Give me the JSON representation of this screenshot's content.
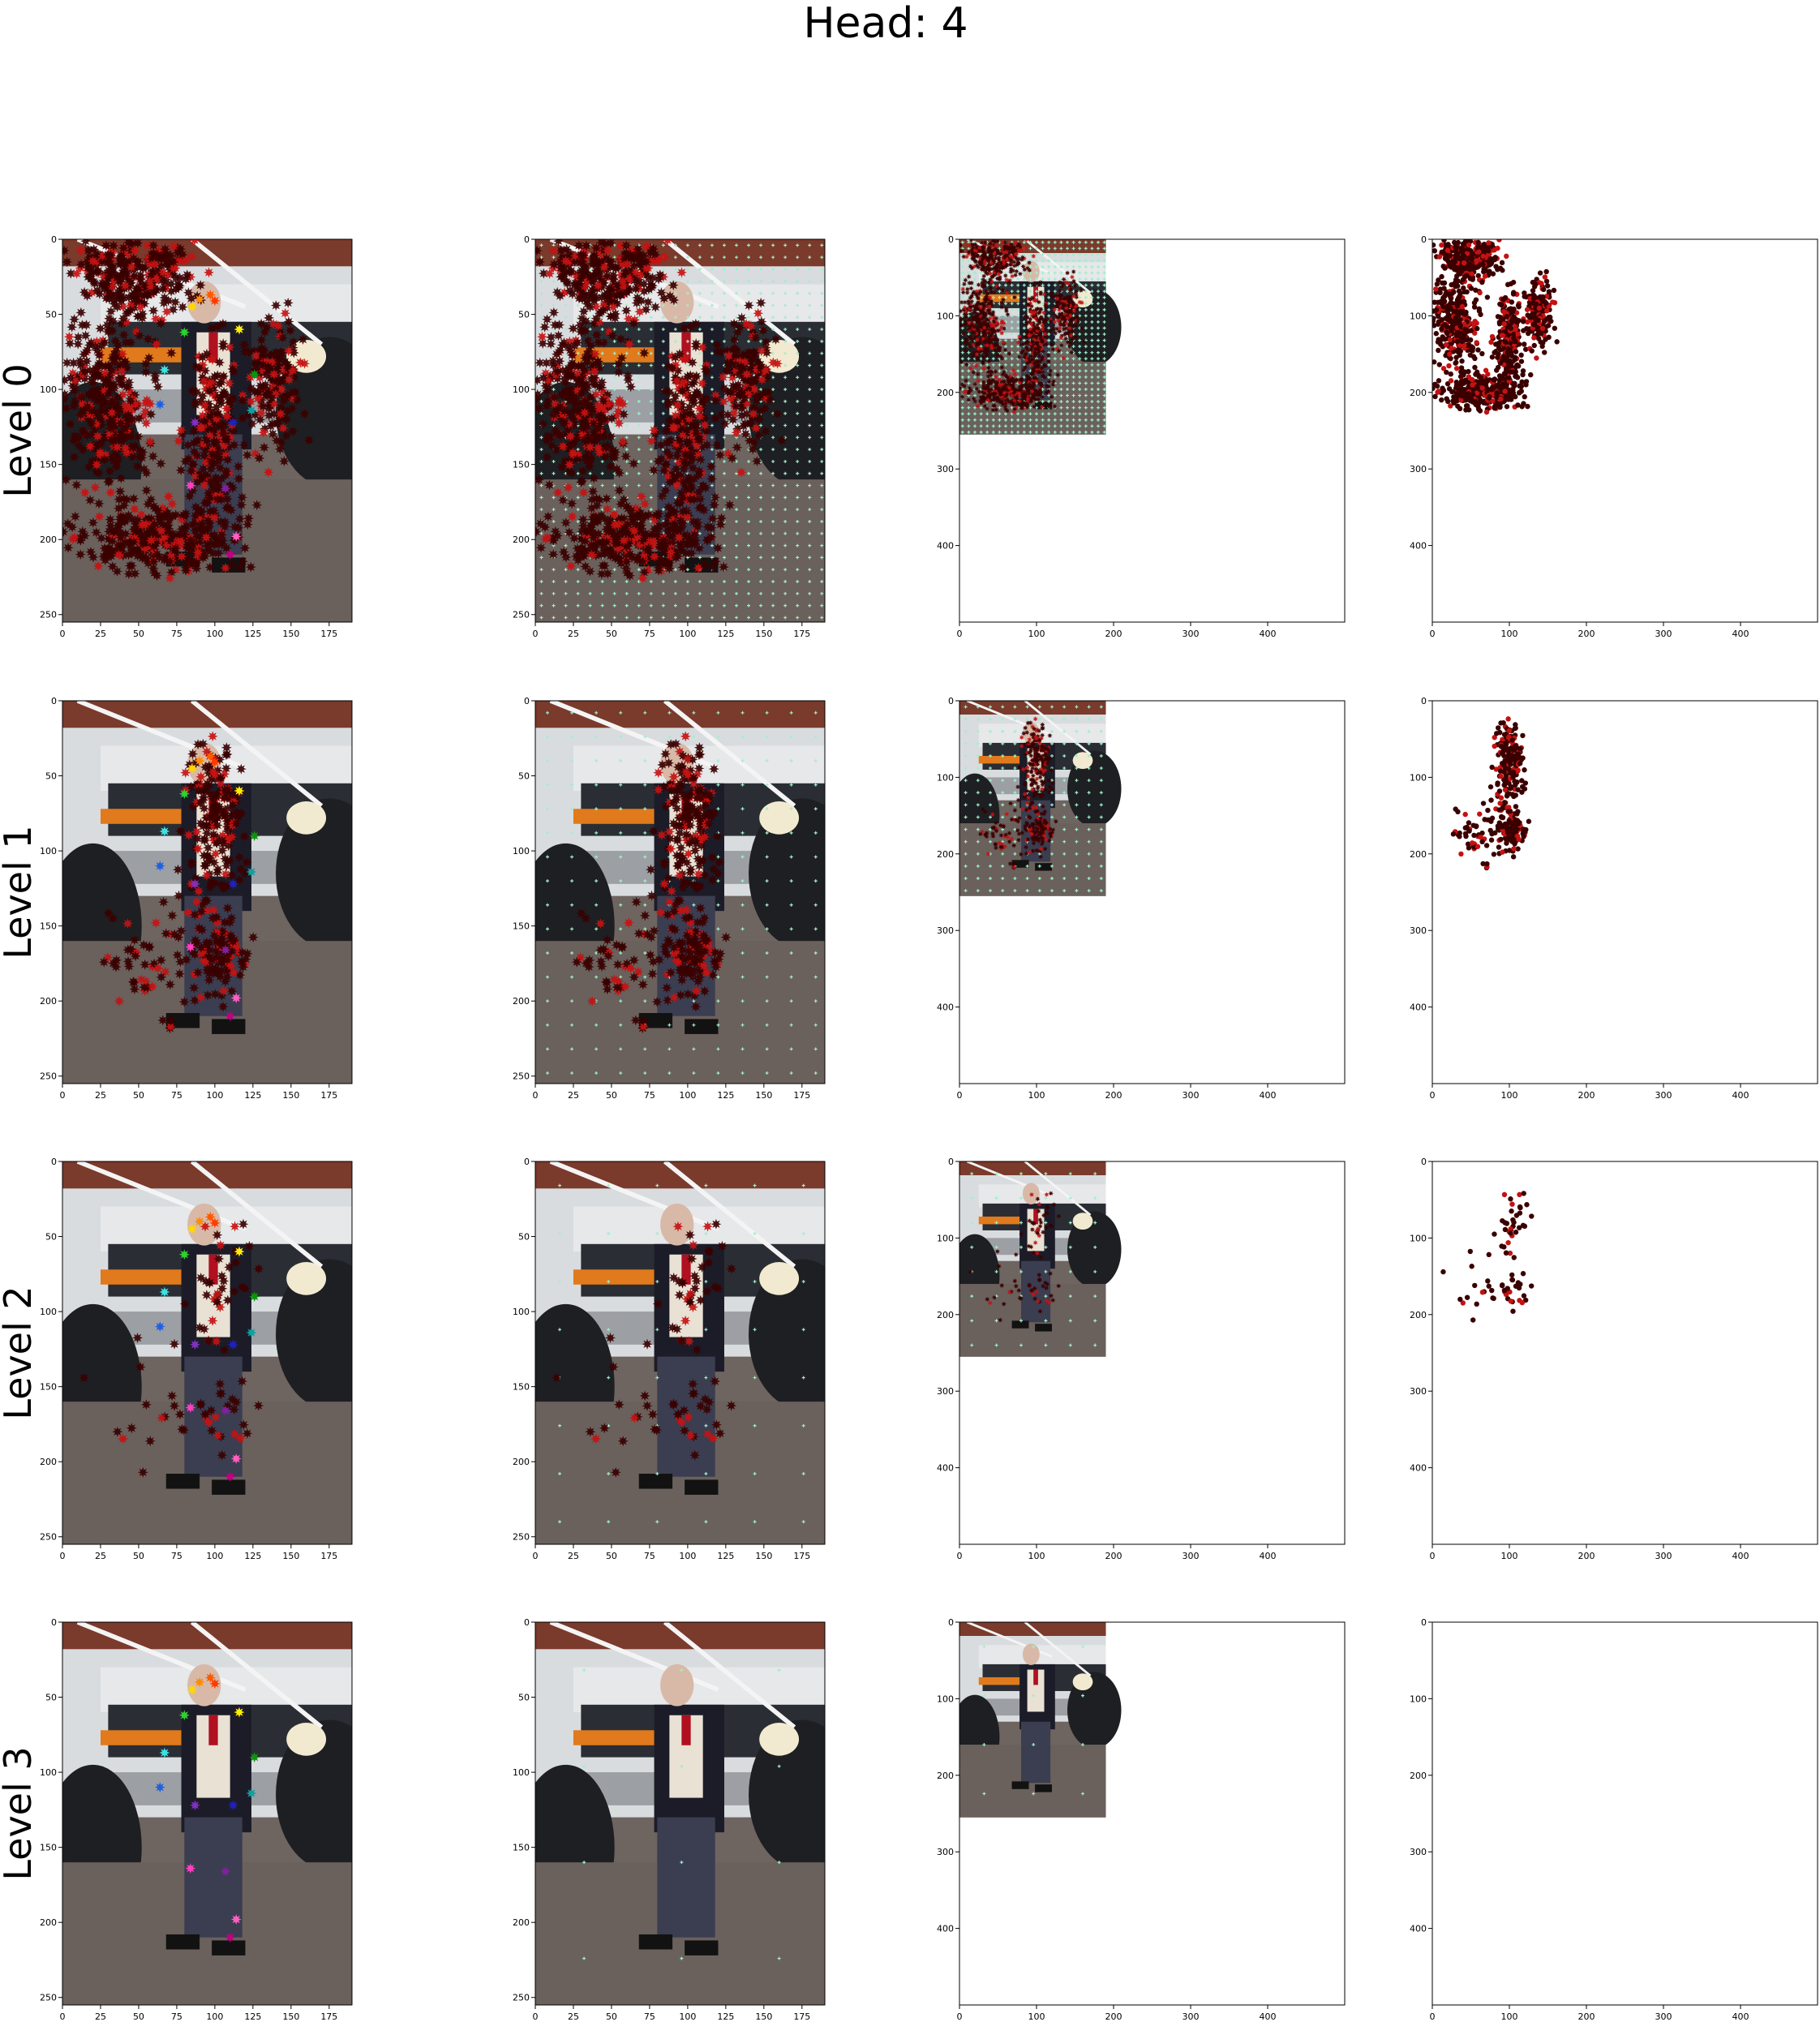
{
  "figure": {
    "title": "Head: 4",
    "row_labels": [
      "Level 0",
      "Level 1",
      "Level 2",
      "Level 3"
    ]
  },
  "colors": {
    "grid_point": "#9ef0c8",
    "sample_dark": "#3a0000",
    "sample_red": "#c41212",
    "photo_brick": "#7a3a2c",
    "photo_truck": "#e6e8ea",
    "photo_road": "#6e6460",
    "photo_suit": "#1c1c28",
    "photo_vest": "#e8e1d4"
  },
  "chart_data": {
    "type": "scatter",
    "panel_columns": [
      {
        "kind": "image-with-sampling-points",
        "xlim": [
          0,
          190
        ],
        "ylim": [
          255,
          0
        ],
        "xticks": [
          0,
          25,
          50,
          75,
          100,
          125,
          150,
          175
        ],
        "yticks": [
          0,
          50,
          100,
          150,
          200,
          250
        ]
      },
      {
        "kind": "image-with-reference-grid",
        "xlim": [
          0,
          190
        ],
        "ylim": [
          255,
          0
        ],
        "xticks": [
          0,
          25,
          50,
          75,
          100,
          125,
          150,
          175
        ],
        "yticks": [
          0,
          50,
          100,
          150,
          200,
          250
        ]
      },
      {
        "kind": "image-in-canvas",
        "xlim": [
          0,
          500
        ],
        "ylim": [
          500,
          0
        ],
        "image_extent": [
          190,
          255
        ],
        "xticks": [
          0,
          100,
          200,
          300,
          400
        ],
        "yticks": [
          0,
          100,
          200,
          300,
          400
        ]
      },
      {
        "kind": "sampling-points-only",
        "xlim": [
          0,
          500
        ],
        "ylim": [
          500,
          0
        ],
        "xticks": [
          0,
          100,
          200,
          300,
          400
        ],
        "yticks": [
          0,
          100,
          200,
          300,
          400
        ]
      }
    ],
    "keypoints": [
      {
        "x": 85,
        "y": 45,
        "color": "#ffd800"
      },
      {
        "x": 90,
        "y": 40,
        "color": "#ff8c00"
      },
      {
        "x": 97,
        "y": 37,
        "color": "#ff5a00"
      },
      {
        "x": 100,
        "y": 41,
        "color": "#ff3c00"
      },
      {
        "x": 116,
        "y": 60,
        "color": "#ffee00"
      },
      {
        "x": 80,
        "y": 62,
        "color": "#30d030"
      },
      {
        "x": 126,
        "y": 90,
        "color": "#109010"
      },
      {
        "x": 67,
        "y": 87,
        "color": "#40e0e0"
      },
      {
        "x": 124,
        "y": 114,
        "color": "#10a0a0"
      },
      {
        "x": 64,
        "y": 110,
        "color": "#2060e0"
      },
      {
        "x": 112,
        "y": 122,
        "color": "#2020c0"
      },
      {
        "x": 87,
        "y": 122,
        "color": "#8030c0"
      },
      {
        "x": 84,
        "y": 164,
        "color": "#ff40c0"
      },
      {
        "x": 107,
        "y": 166,
        "color": "#8020a0"
      },
      {
        "x": 114,
        "y": 198,
        "color": "#ff60c0"
      },
      {
        "x": 110,
        "y": 210,
        "color": "#c00080"
      }
    ],
    "levels": [
      {
        "name": "Level 0",
        "grid_step": 8,
        "sampling_points": 1400,
        "rows": 255,
        "cols": 190
      },
      {
        "name": "Level 1",
        "grid_step": 16,
        "sampling_points": 380,
        "rows": 255,
        "cols": 190
      },
      {
        "name": "Level 2",
        "grid_step": 32,
        "sampling_points": 80,
        "rows": 255,
        "cols": 190
      },
      {
        "name": "Level 3",
        "grid_step": 64,
        "sampling_points": 0,
        "rows": 255,
        "cols": 190
      }
    ]
  }
}
